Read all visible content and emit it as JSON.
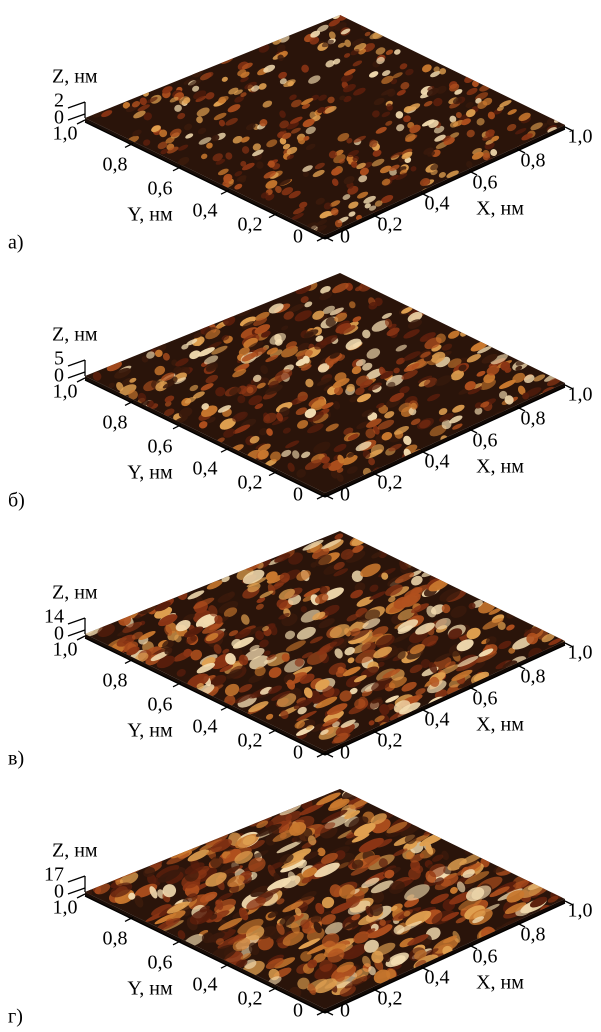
{
  "panels": [
    {
      "label": "а)",
      "z_axis_label": "Z, нм",
      "z_ticks": [
        "2",
        "0"
      ],
      "y_axis_label": "Y, нм",
      "y_ticks": [
        "1,0",
        "0,8",
        "0,6",
        "0,4",
        "0,2",
        "0"
      ],
      "x_axis_label": "X, нм",
      "x_ticks": [
        "0",
        "0,2",
        "0,4",
        "0,6",
        "0,8",
        "1,0"
      ]
    },
    {
      "label": "б)",
      "z_axis_label": "Z, нм",
      "z_ticks": [
        "5",
        "0"
      ],
      "y_axis_label": "Y, нм",
      "y_ticks": [
        "1,0",
        "0,8",
        "0,6",
        "0,4",
        "0,2",
        "0"
      ],
      "x_axis_label": "X, нм",
      "x_ticks": [
        "0",
        "0,2",
        "0,4",
        "0,6",
        "0,8",
        "1,0"
      ]
    },
    {
      "label": "в)",
      "z_axis_label": "Z, нм",
      "z_ticks": [
        "14",
        "0"
      ],
      "y_axis_label": "Y, нм",
      "y_ticks": [
        "1,0",
        "0,8",
        "0,6",
        "0,4",
        "0,2",
        "0"
      ],
      "x_axis_label": "X, нм",
      "x_ticks": [
        "0",
        "0,2",
        "0,4",
        "0,6",
        "0,8",
        "1,0"
      ]
    },
    {
      "label": "г)",
      "z_axis_label": "Z, нм",
      "z_ticks": [
        "17",
        "0"
      ],
      "y_axis_label": "Y, нм",
      "y_ticks": [
        "1,0",
        "0,8",
        "0,6",
        "0,4",
        "0,2",
        "0"
      ],
      "x_axis_label": "X, нм",
      "x_ticks": [
        "0",
        "0,2",
        "0,4",
        "0,6",
        "0,8",
        "1,0"
      ]
    }
  ]
}
